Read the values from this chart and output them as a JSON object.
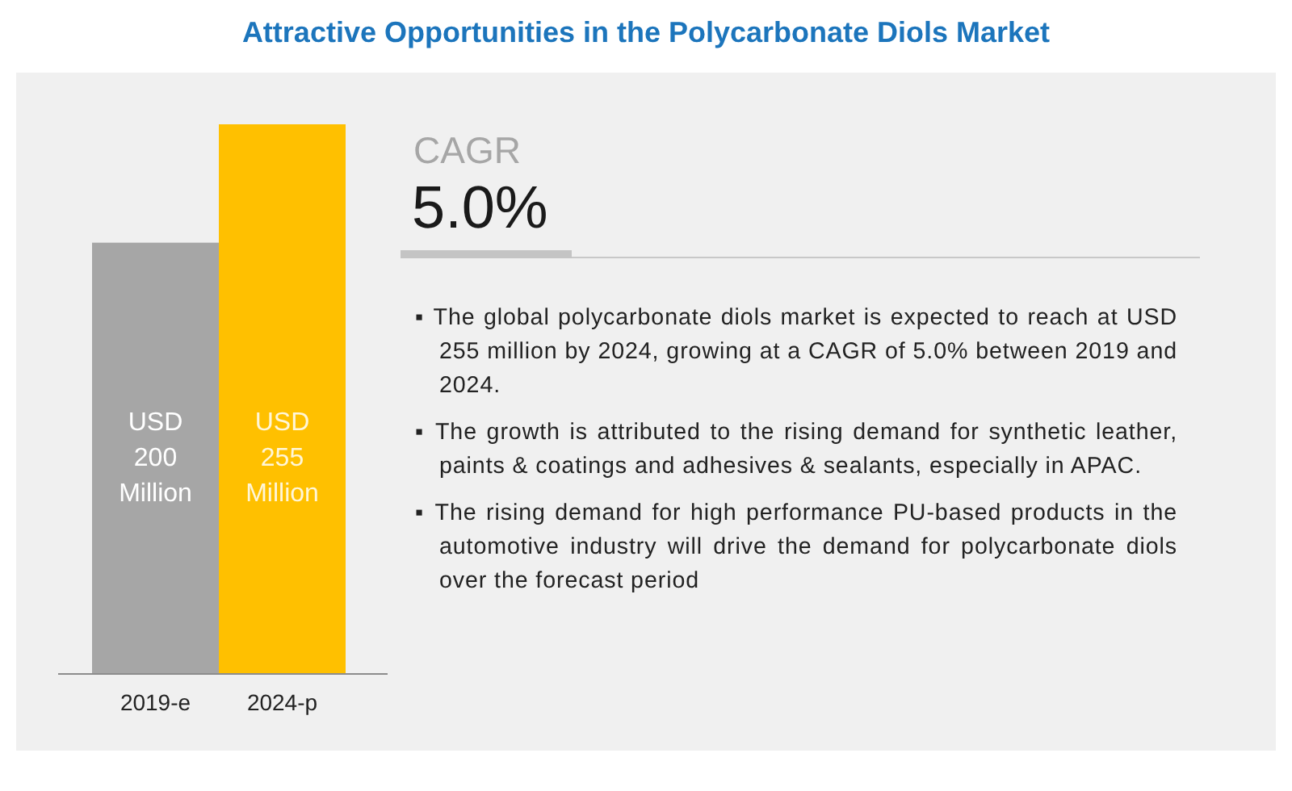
{
  "chart_data": {
    "type": "bar",
    "title": "Attractive Opportunities in the Polycarbonate Diols Market",
    "categories": [
      "2019-e",
      "2024-p"
    ],
    "values": [
      200,
      255
    ],
    "colors": [
      "#a6a6a6",
      "#ffc000"
    ],
    "value_labels": [
      "USD 200 Million",
      "USD 255 Million"
    ],
    "annotations": [
      "CAGR",
      "5.0%",
      "▪ The global polycarbonate diols market is expected to reach at USD 255 million by 2024, growing at a CAGR of 5.0% between 2019 and 2024.",
      "▪ The growth is attributed to the rising demand for synthetic leather, paints & coatings and adhesives & sealants, especially in APAC.",
      "▪ The rising demand for high performance PU-based products in the automotive industry will drive the demand for polycarbonate diols over the forecast period"
    ]
  }
}
